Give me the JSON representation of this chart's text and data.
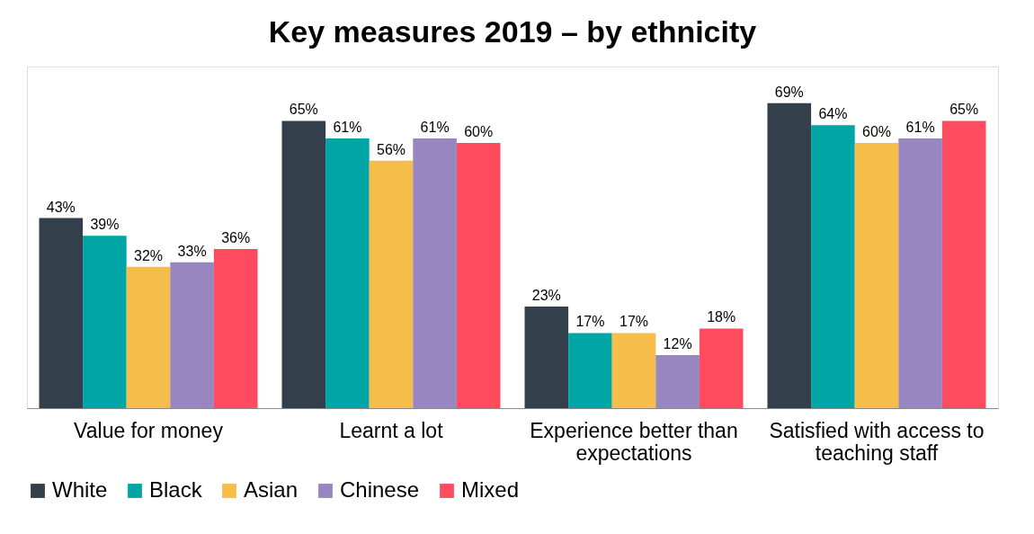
{
  "chart_data": {
    "type": "bar",
    "title": "Key measures 2019 – by ethnicity",
    "categories": [
      "Value for money",
      "Learnt a lot",
      "Experience better than expectations",
      "Satisfied with access to teaching staff"
    ],
    "series": [
      {
        "name": "White",
        "color": "#333f4b",
        "values": [
          43,
          65,
          23,
          69
        ],
        "value_labels": [
          "43%",
          "65%",
          "23%",
          "69%"
        ]
      },
      {
        "name": "Black",
        "color": "#00a5a5",
        "values": [
          39,
          61,
          17,
          64
        ],
        "value_labels": [
          "39%",
          "61%",
          "17%",
          "64%"
        ]
      },
      {
        "name": "Asian",
        "color": "#f5bd4a",
        "values": [
          32,
          56,
          17,
          60
        ],
        "value_labels": [
          "32%",
          "56%",
          "17%",
          "60%"
        ]
      },
      {
        "name": "Chinese",
        "color": "#9886c1",
        "values": [
          33,
          61,
          12,
          61
        ],
        "value_labels": [
          "33%",
          "61%",
          "12%",
          "61%"
        ]
      },
      {
        "name": "Mixed",
        "color": "#ff4b5f",
        "values": [
          36,
          60,
          18,
          65
        ],
        "value_labels": [
          "36%",
          "60%",
          "18%",
          "65%"
        ]
      }
    ],
    "legend": "bottom",
    "grid": false
  }
}
